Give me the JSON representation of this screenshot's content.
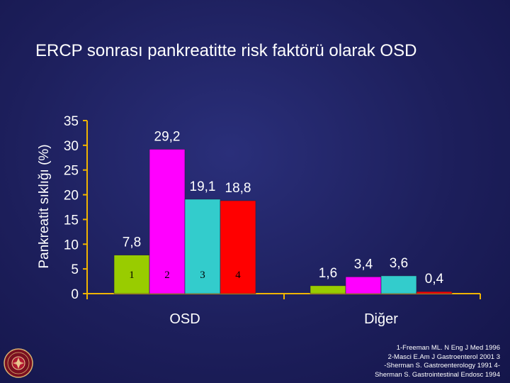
{
  "slide_title": "ERCP sonrası pankreatitte risk faktörü olarak OSD",
  "colors": {
    "axis": "#f0b400",
    "text": "#ffffff",
    "bar_lime": "#99cc00",
    "bar_magenta": "#ff00ff",
    "bar_cyan": "#33cccc",
    "bar_red": "#ff0000"
  },
  "chart_data": {
    "type": "bar",
    "ylabel": "Pankreatit sıklığı (%)",
    "ylim": [
      0,
      35
    ],
    "yticks": [
      "0",
      "5",
      "10",
      "15",
      "20",
      "25",
      "30",
      "35"
    ],
    "categories": [
      "OSD",
      "Diğer"
    ],
    "series": [
      {
        "color": "#99cc00",
        "values": [
          7.8,
          1.6
        ],
        "labels": [
          "7,8",
          "1,6"
        ]
      },
      {
        "color": "#ff00ff",
        "values": [
          29.2,
          3.4
        ],
        "labels": [
          "29,2",
          "3,4"
        ]
      },
      {
        "color": "#33cccc",
        "values": [
          19.1,
          3.6
        ],
        "labels": [
          "19,1",
          "3,6"
        ]
      },
      {
        "color": "#ff0000",
        "values": [
          18.8,
          0.4
        ],
        "labels": [
          "18,8",
          "0,4"
        ]
      }
    ],
    "bar_tags": [
      "1",
      "2",
      "3",
      "4"
    ],
    "grid": false,
    "legend": "none"
  },
  "references": [
    "1-Freeman ML. N Eng J Med 1996",
    "2-Masci E.Am J Gastroenterol 2001 3",
    "-Sherman S. Gastroenterology 1991 4-",
    "Sherman S. Gastrointestinal Endosc 1994"
  ]
}
